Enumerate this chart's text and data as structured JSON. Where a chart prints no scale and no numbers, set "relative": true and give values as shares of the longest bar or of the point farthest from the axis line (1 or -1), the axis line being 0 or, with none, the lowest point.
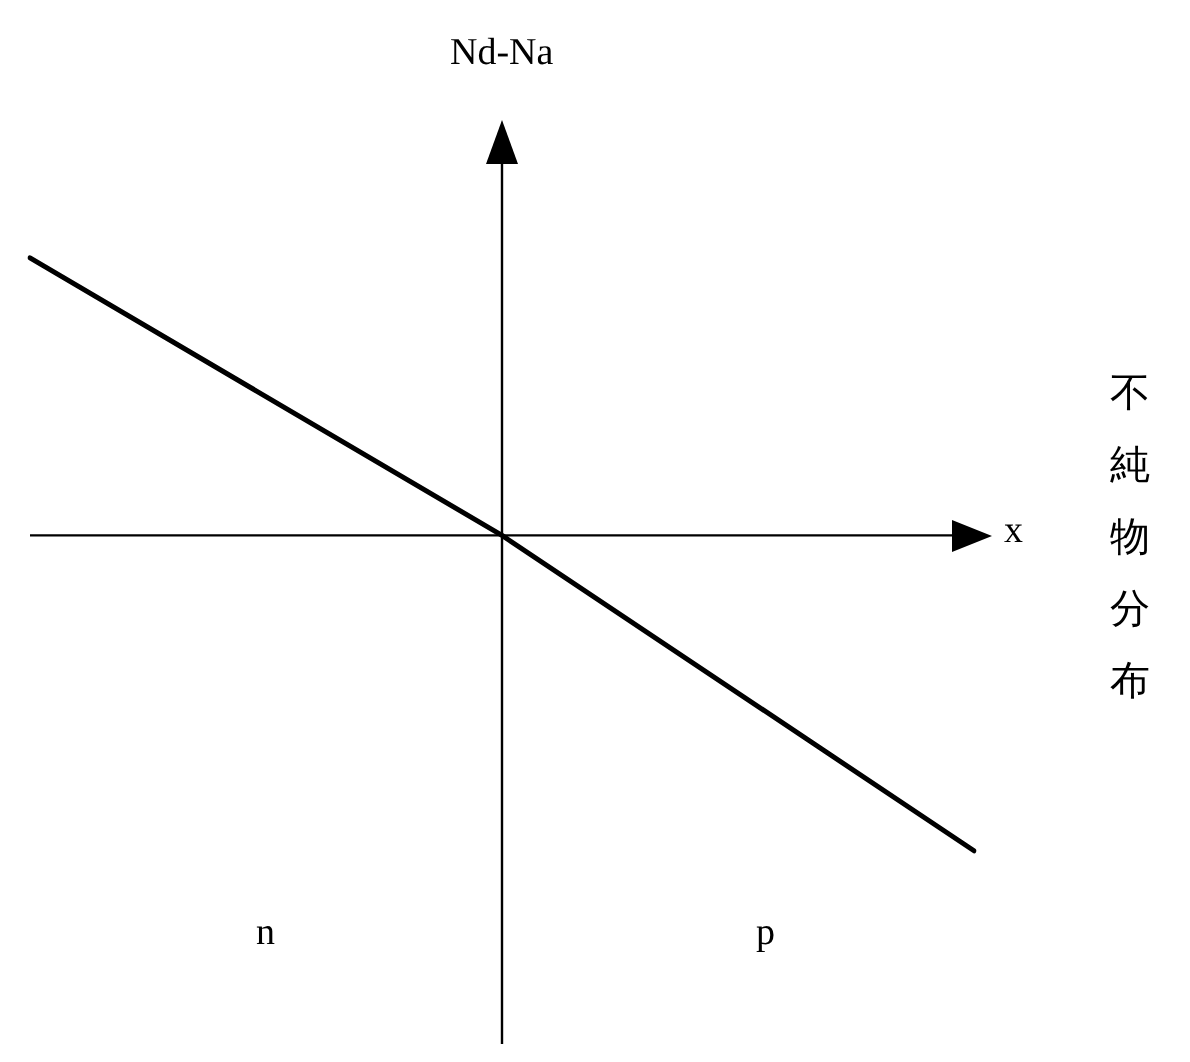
{
  "chart_data": {
    "type": "line",
    "relative": true,
    "xlabel": "x",
    "ylabel": "Nd-Na",
    "categories": [
      null,
      null,
      null
    ],
    "series": [
      {
        "color": "#000000",
        "values": [
          0.88,
          0,
          -1
        ]
      }
    ],
    "marker": "none",
    "line_style": "solid",
    "legend": false,
    "annotations": [
      "n",
      "p",
      "不純物分布"
    ]
  }
}
